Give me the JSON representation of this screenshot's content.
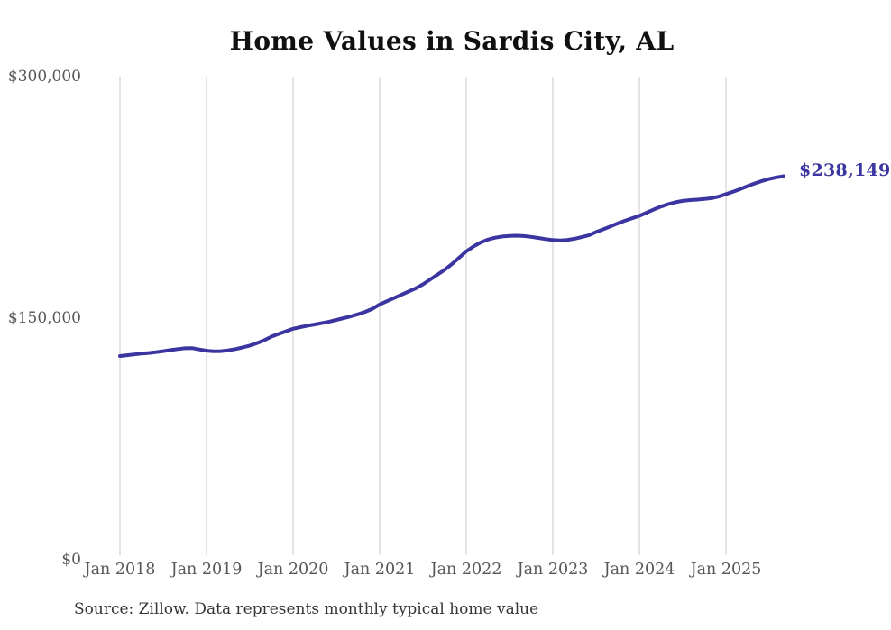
{
  "source_note": "Source: Zillow. Data represents monthly typical home value",
  "colors": {
    "line": "#3a35a0",
    "grid": "#c9c9c9",
    "axis_text": "#575757",
    "title_text": "#101010",
    "source_text": "#363636",
    "background": "#ffffff"
  },
  "chart_data": {
    "type": "line",
    "title": "Home Values in Sardis City, AL",
    "annotation": "$238,149",
    "final_value": 238149,
    "x_start": "2018-01",
    "x_interval": "monthly",
    "x_end": "2025-09",
    "x_tick_labels": [
      "Jan 2018",
      "Jan 2019",
      "Jan 2020",
      "Jan 2021",
      "Jan 2022",
      "Jan 2023",
      "Jan 2024",
      "Jan 2025"
    ],
    "y_ticks": [
      {
        "value": 0,
        "label": "$0"
      },
      {
        "value": 150000,
        "label": "$150,000"
      },
      {
        "value": 300000,
        "label": "$300,000"
      }
    ],
    "ylim": [
      0,
      300000
    ],
    "grid": "vertical-only",
    "legend": "none",
    "series": [
      {
        "name": "Typical home value",
        "values": [
          126500,
          127000,
          127500,
          128000,
          128400,
          128900,
          129500,
          130200,
          130800,
          131300,
          131400,
          130600,
          129800,
          129400,
          129500,
          130000,
          130800,
          131800,
          133000,
          134500,
          136300,
          138500,
          140200,
          141800,
          143400,
          144400,
          145300,
          146100,
          146900,
          147800,
          148900,
          150000,
          151100,
          152400,
          153900,
          155800,
          158500,
          160500,
          162500,
          164500,
          166500,
          168500,
          171000,
          174000,
          177000,
          180000,
          183500,
          187500,
          191500,
          194500,
          197000,
          198800,
          200000,
          200700,
          201100,
          201200,
          201000,
          200500,
          199800,
          199100,
          198500,
          198300,
          198600,
          199300,
          200300,
          201500,
          203500,
          205200,
          207000,
          208800,
          210500,
          212000,
          213500,
          215500,
          217500,
          219300,
          220800,
          222000,
          222800,
          223300,
          223600,
          224000,
          224500,
          225500,
          227000,
          228500,
          230200,
          232000,
          233700,
          235200,
          236400,
          237400,
          238149
        ]
      }
    ]
  }
}
